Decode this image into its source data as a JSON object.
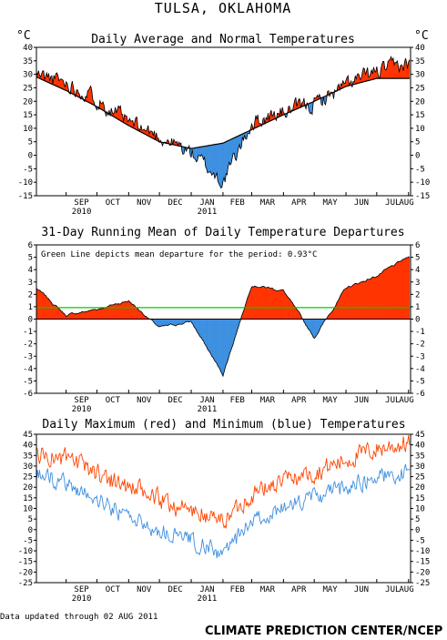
{
  "title": "TULSA, OKLAHOMA",
  "footer": {
    "updated": "Data updated through 02 AUG 2011",
    "credit": "CLIMATE PREDICTION CENTER/NCEP"
  },
  "months": [
    "SEP",
    "OCT",
    "NOV",
    "DEC",
    "JAN",
    "FEB",
    "MAR",
    "APR",
    "MAY",
    "JUN",
    "JUL",
    "AUG"
  ],
  "year_labels": [
    {
      "month": "SEP",
      "text": "2010"
    },
    {
      "month": "JAN",
      "text": "2011"
    }
  ],
  "colors": {
    "above": "#ff3300",
    "below": "#3d8fe0",
    "max_line": "#ff4400",
    "min_line": "#3d8fe0",
    "mean_line": "#00cc00"
  },
  "chart_data": [
    {
      "type": "area",
      "title": "Daily Average and Normal Temperatures",
      "unit_label": "°C",
      "ylim": [
        -15,
        40
      ],
      "yticks": [
        -15,
        -10,
        -5,
        0,
        5,
        10,
        15,
        20,
        25,
        30,
        35,
        40
      ],
      "x_start": "2010-08-03",
      "x_end": "2011-08-02",
      "series": [
        {
          "name": "normal",
          "month_start_values": [
            29,
            24,
            18,
            11,
            5,
            2.5,
            4.5,
            9.5,
            15,
            20,
            25.5,
            28.5,
            28.5
          ]
        },
        {
          "name": "daily average",
          "month_start_values": [
            30,
            27,
            21,
            12,
            7,
            1,
            -10,
            12,
            16,
            19,
            26,
            31,
            34
          ]
        }
      ]
    },
    {
      "type": "area",
      "title": "31-Day Running Mean of Daily Temperature Departures",
      "annotation": "Green Line depicts mean departure for the period: 0.93°C",
      "mean_departure": 0.93,
      "ylim": [
        -6,
        6
      ],
      "yticks": [
        -6,
        -5,
        -4,
        -3,
        -2,
        -1,
        0,
        1,
        2,
        3,
        4,
        5,
        6
      ],
      "x_start": "2010-08-03",
      "x_end": "2011-08-02",
      "series": [
        {
          "name": "running mean departure",
          "month_start_values": [
            2.5,
            0.3,
            0.8,
            1.5,
            -0.7,
            -0.2,
            -4.5,
            2.8,
            2.3,
            -1.5,
            2.5,
            3.5,
            5.0
          ]
        }
      ]
    },
    {
      "type": "line",
      "title": "Daily Maximum (red) and Minimum (blue) Temperatures",
      "ylim": [
        -25,
        45
      ],
      "yticks": [
        -25,
        -20,
        -15,
        -10,
        -5,
        0,
        5,
        10,
        15,
        20,
        25,
        30,
        35,
        40,
        45
      ],
      "x_start": "2010-08-03",
      "x_end": "2011-08-02",
      "series": [
        {
          "name": "maximum",
          "month_start_values": [
            36,
            33,
            27,
            20,
            14,
            9,
            4,
            17,
            23,
            27,
            33,
            38,
            41
          ]
        },
        {
          "name": "minimum",
          "month_start_values": [
            26,
            22,
            14,
            6,
            -1,
            -5,
            -12,
            4,
            10,
            15,
            20,
            25,
            27
          ]
        }
      ]
    }
  ]
}
